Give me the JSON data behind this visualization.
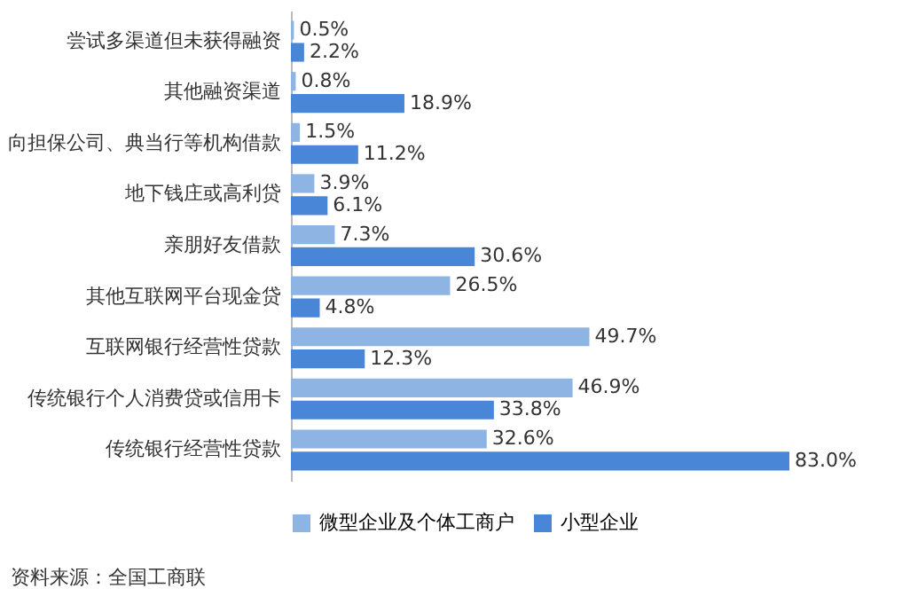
{
  "chart_data": {
    "type": "bar",
    "orientation": "horizontal",
    "categories": [
      "尝试多渠道但未获得融资",
      "其他融资渠道",
      "向担保公司、典当行等机构借款",
      "地下钱庄或高利贷",
      "亲朋好友借款",
      "其他互联网平台现金贷",
      "互联网银行经营性贷款",
      "传统银行个人消费贷或信用卡",
      "传统银行经营性贷款"
    ],
    "series": [
      {
        "name": "微型企业及个体工商户",
        "color": "#8db4e2",
        "values": [
          0.5,
          0.8,
          1.5,
          3.9,
          7.3,
          26.5,
          49.7,
          46.9,
          32.6
        ],
        "value_labels": [
          "0.5%",
          "0.8%",
          "1.5%",
          "3.9%",
          "7.3%",
          "26.5%",
          "49.7%",
          "46.9%",
          "32.6%"
        ]
      },
      {
        "name": "小型企业",
        "color": "#4a86d8",
        "values": [
          2.2,
          18.9,
          11.2,
          6.1,
          30.6,
          4.8,
          12.3,
          33.8,
          83.0
        ],
        "value_labels": [
          "2.2%",
          "18.9%",
          "11.2%",
          "6.1%",
          "30.6%",
          "4.8%",
          "12.3%",
          "33.8%",
          "83.0%"
        ]
      }
    ],
    "legend": "bottom",
    "annotations": [
      "资料来源：全国工商联"
    ]
  }
}
